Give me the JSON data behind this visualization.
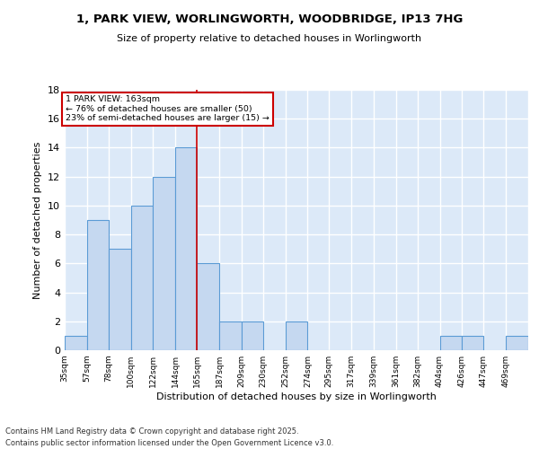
{
  "title_line1": "1, PARK VIEW, WORLINGWORTH, WOODBRIDGE, IP13 7HG",
  "title_line2": "Size of property relative to detached houses in Worlingworth",
  "xlabel": "Distribution of detached houses by size in Worlingworth",
  "ylabel": "Number of detached properties",
  "bin_labels": [
    "35sqm",
    "57sqm",
    "78sqm",
    "100sqm",
    "122sqm",
    "144sqm",
    "165sqm",
    "187sqm",
    "209sqm",
    "230sqm",
    "252sqm",
    "274sqm",
    "295sqm",
    "317sqm",
    "339sqm",
    "361sqm",
    "382sqm",
    "404sqm",
    "426sqm",
    "447sqm",
    "469sqm"
  ],
  "bin_edges": [
    35,
    57,
    78,
    100,
    122,
    144,
    165,
    187,
    209,
    230,
    252,
    274,
    295,
    317,
    339,
    361,
    382,
    404,
    426,
    447,
    469,
    491
  ],
  "values": [
    1,
    9,
    7,
    10,
    12,
    14,
    6,
    2,
    2,
    0,
    2,
    0,
    0,
    0,
    0,
    0,
    0,
    1,
    1,
    0,
    1
  ],
  "bar_color": "#c5d8f0",
  "bar_edge_color": "#5b9bd5",
  "background_color": "#dce9f8",
  "grid_color": "#ffffff",
  "fig_background": "#ffffff",
  "annotation_text": "1 PARK VIEW: 163sqm\n← 76% of detached houses are smaller (50)\n23% of semi-detached houses are larger (15) →",
  "annotation_box_color": "#ffffff",
  "annotation_box_edge_color": "#cc0000",
  "property_line_x": 165,
  "ylim": [
    0,
    18
  ],
  "yticks": [
    0,
    2,
    4,
    6,
    8,
    10,
    12,
    14,
    16,
    18
  ],
  "footer_line1": "Contains HM Land Registry data © Crown copyright and database right 2025.",
  "footer_line2": "Contains public sector information licensed under the Open Government Licence v3.0."
}
